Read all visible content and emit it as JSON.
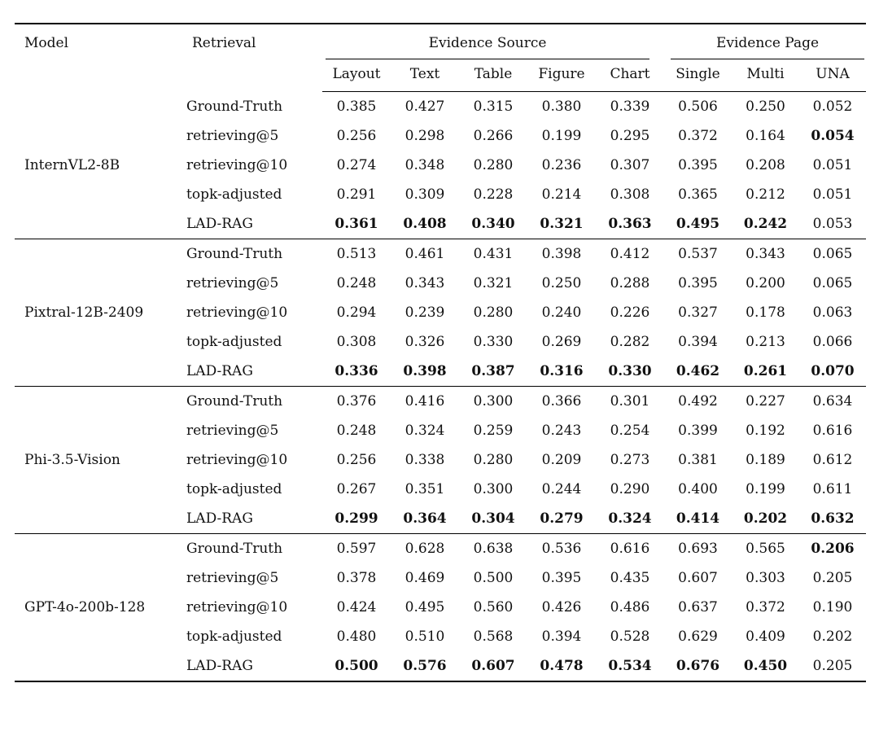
{
  "page": {
    "background_color": "#ffffff",
    "text_color": "#111111",
    "rule_color": "#000000"
  },
  "table": {
    "header": {
      "model": "Model",
      "retrieval": "Retrieval",
      "evidence_source": "Evidence Source",
      "evidence_page": "Evidence Page",
      "source_subheaders": [
        "Layout",
        "Text",
        "Table",
        "Figure",
        "Chart"
      ],
      "page_subheaders": [
        "Single",
        "Multi",
        "UNA"
      ]
    },
    "groups": [
      {
        "model": "InternVL2-8B",
        "rows": [
          {
            "retrieval": "Ground-Truth",
            "values": [
              "0.385",
              "0.427",
              "0.315",
              "0.380",
              "0.339",
              "0.506",
              "0.250",
              "0.052"
            ],
            "bold": [
              false,
              false,
              false,
              false,
              false,
              false,
              false,
              false
            ]
          },
          {
            "retrieval": "retrieving@5",
            "values": [
              "0.256",
              "0.298",
              "0.266",
              "0.199",
              "0.295",
              "0.372",
              "0.164",
              "0.054"
            ],
            "bold": [
              false,
              false,
              false,
              false,
              false,
              false,
              false,
              true
            ]
          },
          {
            "retrieval": "retrieving@10",
            "values": [
              "0.274",
              "0.348",
              "0.280",
              "0.236",
              "0.307",
              "0.395",
              "0.208",
              "0.051"
            ],
            "bold": [
              false,
              false,
              false,
              false,
              false,
              false,
              false,
              false
            ]
          },
          {
            "retrieval": "topk-adjusted",
            "values": [
              "0.291",
              "0.309",
              "0.228",
              "0.214",
              "0.308",
              "0.365",
              "0.212",
              "0.051"
            ],
            "bold": [
              false,
              false,
              false,
              false,
              false,
              false,
              false,
              false
            ]
          },
          {
            "retrieval": "LAD-RAG",
            "values": [
              "0.361",
              "0.408",
              "0.340",
              "0.321",
              "0.363",
              "0.495",
              "0.242",
              "0.053"
            ],
            "bold": [
              true,
              true,
              true,
              true,
              true,
              true,
              true,
              false
            ]
          }
        ]
      },
      {
        "model": "Pixtral-12B-2409",
        "rows": [
          {
            "retrieval": "Ground-Truth",
            "values": [
              "0.513",
              "0.461",
              "0.431",
              "0.398",
              "0.412",
              "0.537",
              "0.343",
              "0.065"
            ],
            "bold": [
              false,
              false,
              false,
              false,
              false,
              false,
              false,
              false
            ]
          },
          {
            "retrieval": "retrieving@5",
            "values": [
              "0.248",
              "0.343",
              "0.321",
              "0.250",
              "0.288",
              "0.395",
              "0.200",
              "0.065"
            ],
            "bold": [
              false,
              false,
              false,
              false,
              false,
              false,
              false,
              false
            ]
          },
          {
            "retrieval": "retrieving@10",
            "values": [
              "0.294",
              "0.239",
              "0.280",
              "0.240",
              "0.226",
              "0.327",
              "0.178",
              "0.063"
            ],
            "bold": [
              false,
              false,
              false,
              false,
              false,
              false,
              false,
              false
            ]
          },
          {
            "retrieval": "topk-adjusted",
            "values": [
              "0.308",
              "0.326",
              "0.330",
              "0.269",
              "0.282",
              "0.394",
              "0.213",
              "0.066"
            ],
            "bold": [
              false,
              false,
              false,
              false,
              false,
              false,
              false,
              false
            ]
          },
          {
            "retrieval": "LAD-RAG",
            "values": [
              "0.336",
              "0.398",
              "0.387",
              "0.316",
              "0.330",
              "0.462",
              "0.261",
              "0.070"
            ],
            "bold": [
              true,
              true,
              true,
              true,
              true,
              true,
              true,
              true
            ]
          }
        ]
      },
      {
        "model": "Phi-3.5-Vision",
        "rows": [
          {
            "retrieval": "Ground-Truth",
            "values": [
              "0.376",
              "0.416",
              "0.300",
              "0.366",
              "0.301",
              "0.492",
              "0.227",
              "0.634"
            ],
            "bold": [
              false,
              false,
              false,
              false,
              false,
              false,
              false,
              false
            ]
          },
          {
            "retrieval": "retrieving@5",
            "values": [
              "0.248",
              "0.324",
              "0.259",
              "0.243",
              "0.254",
              "0.399",
              "0.192",
              "0.616"
            ],
            "bold": [
              false,
              false,
              false,
              false,
              false,
              false,
              false,
              false
            ]
          },
          {
            "retrieval": "retrieving@10",
            "values": [
              "0.256",
              "0.338",
              "0.280",
              "0.209",
              "0.273",
              "0.381",
              "0.189",
              "0.612"
            ],
            "bold": [
              false,
              false,
              false,
              false,
              false,
              false,
              false,
              false
            ]
          },
          {
            "retrieval": "topk-adjusted",
            "values": [
              "0.267",
              "0.351",
              "0.300",
              "0.244",
              "0.290",
              "0.400",
              "0.199",
              "0.611"
            ],
            "bold": [
              false,
              false,
              false,
              false,
              false,
              false,
              false,
              false
            ]
          },
          {
            "retrieval": "LAD-RAG",
            "values": [
              "0.299",
              "0.364",
              "0.304",
              "0.279",
              "0.324",
              "0.414",
              "0.202",
              "0.632"
            ],
            "bold": [
              true,
              true,
              true,
              true,
              true,
              true,
              true,
              true
            ]
          }
        ]
      },
      {
        "model": "GPT-4o-200b-128",
        "rows": [
          {
            "retrieval": "Ground-Truth",
            "values": [
              "0.597",
              "0.628",
              "0.638",
              "0.536",
              "0.616",
              "0.693",
              "0.565",
              "0.206"
            ],
            "bold": [
              false,
              false,
              false,
              false,
              false,
              false,
              false,
              true
            ]
          },
          {
            "retrieval": "retrieving@5",
            "values": [
              "0.378",
              "0.469",
              "0.500",
              "0.395",
              "0.435",
              "0.607",
              "0.303",
              "0.205"
            ],
            "bold": [
              false,
              false,
              false,
              false,
              false,
              false,
              false,
              false
            ]
          },
          {
            "retrieval": "retrieving@10",
            "values": [
              "0.424",
              "0.495",
              "0.560",
              "0.426",
              "0.486",
              "0.637",
              "0.372",
              "0.190"
            ],
            "bold": [
              false,
              false,
              false,
              false,
              false,
              false,
              false,
              false
            ]
          },
          {
            "retrieval": "topk-adjusted",
            "values": [
              "0.480",
              "0.510",
              "0.568",
              "0.394",
              "0.528",
              "0.629",
              "0.409",
              "0.202"
            ],
            "bold": [
              false,
              false,
              false,
              false,
              false,
              false,
              false,
              false
            ]
          },
          {
            "retrieval": "LAD-RAG",
            "values": [
              "0.500",
              "0.576",
              "0.607",
              "0.478",
              "0.534",
              "0.676",
              "0.450",
              "0.205"
            ],
            "bold": [
              true,
              true,
              true,
              true,
              true,
              true,
              true,
              false
            ]
          }
        ]
      }
    ]
  }
}
